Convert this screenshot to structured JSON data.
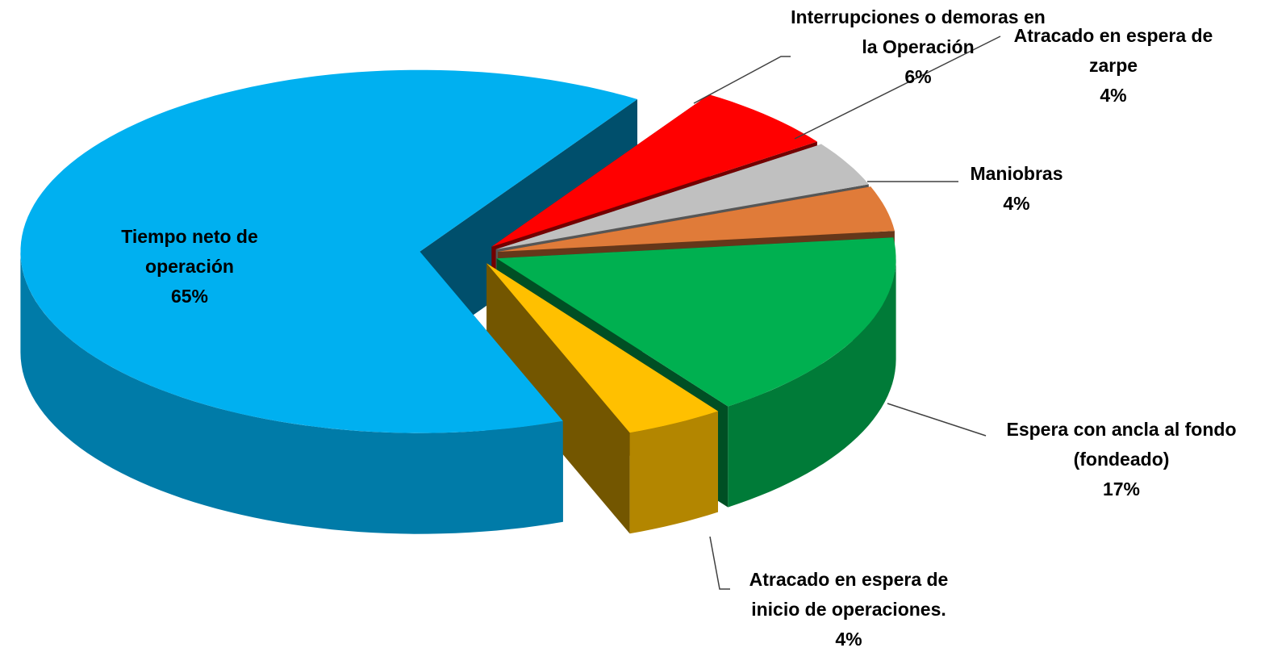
{
  "chart_data": {
    "type": "pie",
    "categories": [
      "Tiempo neto de operación",
      "Interrupciones o demoras en la Operación",
      "Atracado en espera de zarpe",
      "Maniobras",
      "Espera con ancla al fondo (fondeado)",
      "Atracado en espera de inicio de operaciones."
    ],
    "values": [
      65,
      6,
      4,
      4,
      17,
      4
    ],
    "value_labels": [
      "65%",
      "6%",
      "4%",
      "4%",
      "17%",
      "4%"
    ],
    "colors": [
      "#00b0f0",
      "#ff0000",
      "#c0c0c0",
      "#e07b39",
      "#00b050",
      "#ffc000"
    ]
  }
}
